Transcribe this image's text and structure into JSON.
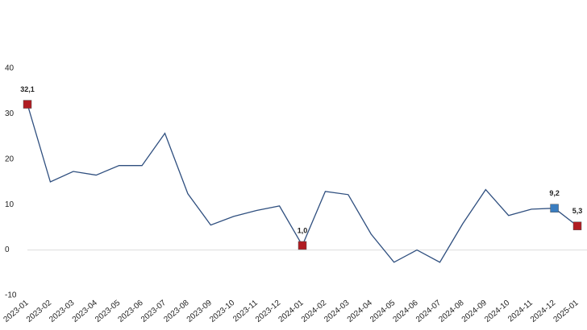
{
  "chart_data": {
    "type": "line",
    "categories": [
      "2023-01",
      "2023-02",
      "2023-03",
      "2023-04",
      "2023-05",
      "2023-06",
      "2023-07",
      "2023-08",
      "2023-09",
      "2023-10",
      "2023-11",
      "2023-12",
      "2024-01",
      "2024-02",
      "2024-03",
      "2024-04",
      "2024-05",
      "2024-06",
      "2024-07",
      "2024-08",
      "2024-09",
      "2024-10",
      "2024-11",
      "2024-12",
      "2025-01"
    ],
    "series": [
      {
        "color": "#2f4f7f",
        "values": [
          32.1,
          15.0,
          17.3,
          16.5,
          18.6,
          18.6,
          25.7,
          12.4,
          5.5,
          7.4,
          8.7,
          9.7,
          1.0,
          12.9,
          12.2,
          3.5,
          -2.7,
          0,
          -2.7,
          5.8,
          13.3,
          7.6,
          9.0,
          9.2,
          5.3
        ],
        "value_labels": [
          "32,1",
          null,
          null,
          null,
          null,
          null,
          null,
          null,
          null,
          null,
          null,
          null,
          "1,0",
          null,
          null,
          null,
          null,
          null,
          null,
          null,
          null,
          null,
          null,
          "9,2",
          "5,3"
        ],
        "marker_colors": [
          "#b01c22",
          null,
          null,
          null,
          null,
          null,
          null,
          null,
          null,
          null,
          null,
          null,
          "#b01c22",
          null,
          null,
          null,
          null,
          null,
          null,
          null,
          null,
          null,
          null,
          "#3a7dc0",
          "#b01c22"
        ]
      }
    ],
    "ylim": [
      -10,
      40
    ],
    "yticks": [
      -10,
      0,
      10,
      20,
      30,
      40
    ],
    "zero_line": true
  }
}
